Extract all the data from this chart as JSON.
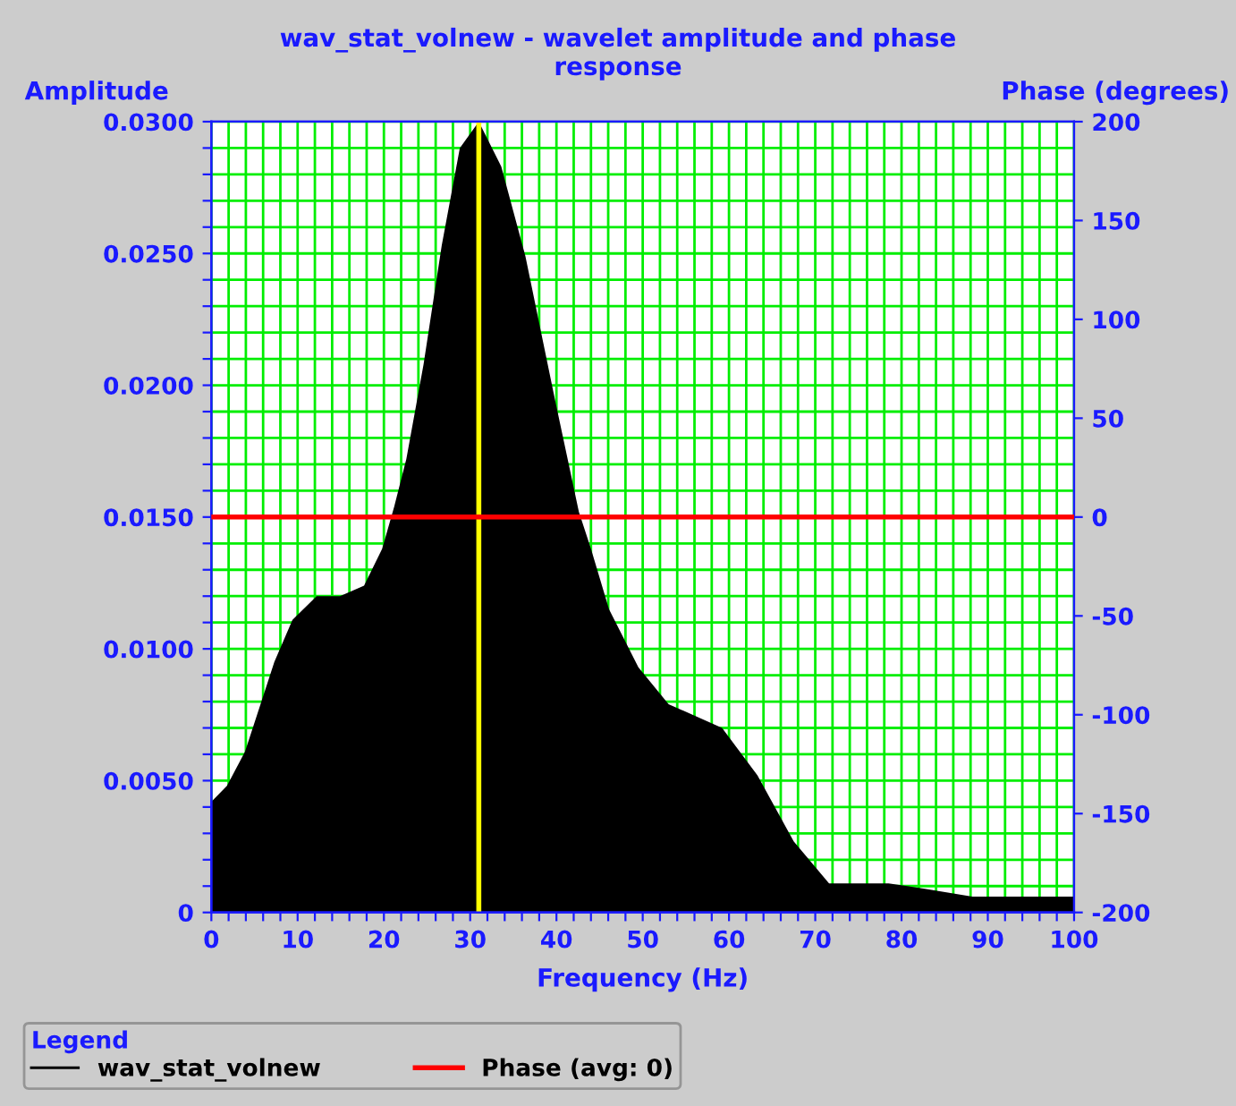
{
  "chart_data": {
    "type": "area",
    "title": "wav_stat_volnew - wavelet amplitude and phase\nresponse",
    "xlabel": "Frequency (Hz)",
    "ylabel": "Amplitude",
    "y2label": "Phase (degrees)",
    "legend_title": "Legend",
    "legend": "bottom",
    "grid": true,
    "xlim": [
      0,
      100
    ],
    "ylim": [
      0,
      0.03
    ],
    "y2lim": [
      -200,
      200
    ],
    "xticks": [
      0,
      {
        "value": 2,
        "label": null
      },
      {
        "value": 4,
        "label": null
      },
      {
        "value": 6,
        "label": null
      },
      {
        "value": 8,
        "label": null
      },
      10,
      {
        "value": 12,
        "label": null
      },
      {
        "value": 14,
        "label": null
      },
      {
        "value": 16,
        "label": null
      },
      {
        "value": 18,
        "label": null
      },
      20,
      {
        "value": 22,
        "label": null
      },
      {
        "value": 24,
        "label": null
      },
      {
        "value": 26,
        "label": null
      },
      {
        "value": 28,
        "label": null
      },
      30,
      {
        "value": 32,
        "label": null
      },
      {
        "value": 34,
        "label": null
      },
      {
        "value": 36,
        "label": null
      },
      {
        "value": 38,
        "label": null
      },
      40,
      {
        "value": 42,
        "label": null
      },
      {
        "value": 44,
        "label": null
      },
      {
        "value": 46,
        "label": null
      },
      {
        "value": 48,
        "label": null
      },
      50,
      {
        "value": 52,
        "label": null
      },
      {
        "value": 54,
        "label": null
      },
      {
        "value": 56,
        "label": null
      },
      {
        "value": 58,
        "label": null
      },
      60,
      {
        "value": 62,
        "label": null
      },
      {
        "value": 64,
        "label": null
      },
      {
        "value": 66,
        "label": null
      },
      {
        "value": 68,
        "label": null
      },
      70,
      {
        "value": 72,
        "label": null
      },
      {
        "value": 74,
        "label": null
      },
      {
        "value": 76,
        "label": null
      },
      {
        "value": 78,
        "label": null
      },
      80,
      {
        "value": 82,
        "label": null
      },
      {
        "value": 84,
        "label": null
      },
      {
        "value": 86,
        "label": null
      },
      {
        "value": 88,
        "label": null
      },
      90,
      {
        "value": 92,
        "label": null
      },
      {
        "value": 94,
        "label": null
      },
      {
        "value": 96,
        "label": null
      },
      {
        "value": 98,
        "label": null
      },
      100
    ],
    "yticks": [
      0,
      {
        "value": 0.001,
        "label": null
      },
      {
        "value": 0.002,
        "label": null
      },
      {
        "value": 0.003,
        "label": null
      },
      {
        "value": 0.004,
        "label": null
      },
      {
        "value": 0.005,
        "label": "0.0050"
      },
      {
        "value": 0.006,
        "label": null
      },
      {
        "value": 0.007,
        "label": null
      },
      {
        "value": 0.008,
        "label": null
      },
      {
        "value": 0.009,
        "label": null
      },
      {
        "value": 0.01,
        "label": "0.0100"
      },
      {
        "value": 0.011,
        "label": null
      },
      {
        "value": 0.012,
        "label": null
      },
      {
        "value": 0.013,
        "label": null
      },
      {
        "value": 0.014,
        "label": null
      },
      {
        "value": 0.015,
        "label": "0.0150"
      },
      {
        "value": 0.016,
        "label": null
      },
      {
        "value": 0.017,
        "label": null
      },
      {
        "value": 0.018,
        "label": null
      },
      {
        "value": 0.019,
        "label": null
      },
      {
        "value": 0.02,
        "label": "0.0200"
      },
      {
        "value": 0.021,
        "label": null
      },
      {
        "value": 0.022,
        "label": null
      },
      {
        "value": 0.023,
        "label": null
      },
      {
        "value": 0.024,
        "label": null
      },
      {
        "value": 0.025,
        "label": "0.0250"
      },
      {
        "value": 0.026,
        "label": null
      },
      {
        "value": 0.027,
        "label": null
      },
      {
        "value": 0.028,
        "label": null
      },
      {
        "value": 0.029,
        "label": null
      },
      {
        "value": 0.03,
        "label": "0.0300"
      }
    ],
    "y2ticks": [
      -200,
      -150,
      -100,
      -50,
      0,
      50,
      100,
      150,
      200
    ],
    "ref_lines": [
      {
        "axis": "x",
        "value": 31,
        "color": "#ffff00"
      }
    ],
    "series": [
      {
        "name": "wav_stat_volnew",
        "color": "#000000",
        "x": [
          0,
          1.8,
          3.9,
          5.3,
          7.3,
          9.4,
          12.2,
          14.9,
          17.7,
          19.8,
          21.2,
          22.6,
          24.6,
          26.7,
          28.8,
          31,
          33.6,
          36.4,
          39.8,
          42.6,
          44,
          46.1,
          49.5,
          53,
          59.2,
          63.3,
          67.5,
          71.6,
          78.5,
          82.7,
          88.2,
          99.3,
          100
        ],
        "values": [
          0.0042,
          0.0048,
          0.0061,
          0.0075,
          0.0095,
          0.0111,
          0.012,
          0.012,
          0.0124,
          0.0138,
          0.0154,
          0.0172,
          0.0208,
          0.0253,
          0.029,
          0.03,
          0.0283,
          0.0249,
          0.0195,
          0.0152,
          0.0138,
          0.0115,
          0.0093,
          0.0079,
          0.007,
          0.0052,
          0.0027,
          0.0011,
          0.0011,
          0.0009,
          0.0006,
          0.0006,
          0.0006
        ]
      },
      {
        "name": "Phase (avg: 0)",
        "type": "line",
        "axis": "y2",
        "color": "#ff0000",
        "x": [
          0,
          100
        ],
        "values": [
          0,
          0
        ]
      }
    ]
  }
}
